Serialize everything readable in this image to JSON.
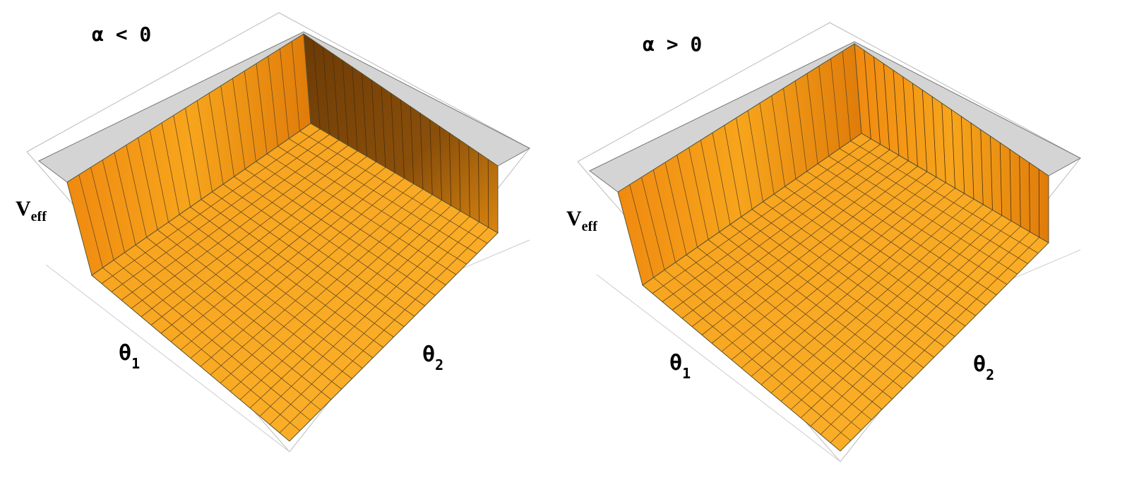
{
  "panels": [
    {
      "title": "α < 0",
      "z_label": "V",
      "z_label_sub": "eff",
      "x_label": "θ",
      "x_label_sub": "1",
      "y_label": "θ",
      "y_label_sub": "2"
    },
    {
      "title": "α > 0",
      "z_label": "V",
      "z_label_sub": "eff",
      "x_label": "θ",
      "x_label_sub": "1",
      "y_label": "θ",
      "y_label_sub": "2"
    }
  ]
}
